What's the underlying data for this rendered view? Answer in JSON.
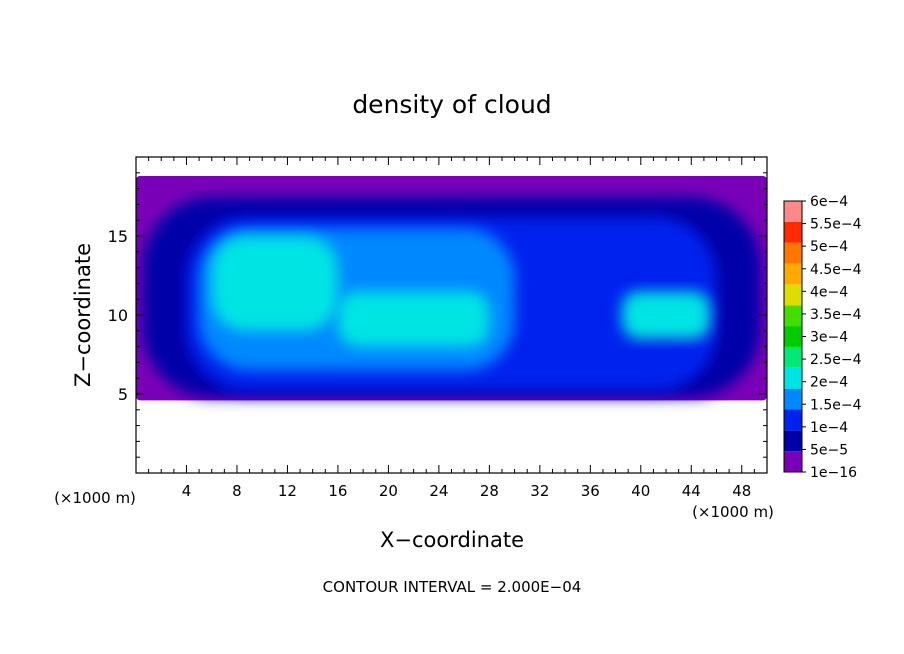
{
  "chart_data": {
    "type": "heatmap",
    "title": "density of cloud",
    "xlabel": "X−coordinate",
    "ylabel": "Z−coordinate",
    "x_unit_label": "(×1000 m)",
    "x_unit_label_right": "(×1000 m)",
    "xlim": [
      0,
      50
    ],
    "ylim": [
      0,
      20
    ],
    "x_ticks": [
      4,
      8,
      12,
      16,
      20,
      24,
      28,
      32,
      36,
      40,
      44,
      48
    ],
    "x_tick_labels": [
      "4",
      "8",
      "12",
      "16",
      "20",
      "24",
      "28",
      "32",
      "36",
      "40",
      "44",
      "48"
    ],
    "y_ticks": [
      5,
      10,
      15
    ],
    "y_tick_labels": [
      "5",
      "10",
      "15"
    ],
    "footer": "CONTOUR INTERVAL = 2.000E−04",
    "colorbar": {
      "levels": [
        "1e−16",
        "5e−5",
        "1e−4",
        "1.5e−4",
        "2e−4",
        "2.5e−4",
        "3e−4",
        "3.5e−4",
        "4e−4",
        "4.5e−4",
        "5e−4",
        "5.5e−4",
        "6e−4"
      ],
      "values": [
        1e-16,
        5e-05,
        0.0001,
        0.00015,
        0.0002,
        0.00025,
        0.0003,
        0.00035,
        0.0004,
        0.00045,
        0.0005,
        0.00055,
        0.0006
      ],
      "colors": [
        "#7a00b8",
        "#0000a8",
        "#0022ee",
        "#0088ff",
        "#00e4e4",
        "#00e878",
        "#00cc00",
        "#44dd00",
        "#dddd00",
        "#ffaa00",
        "#ff7700",
        "#ff2a00",
        "#ff8888"
      ]
    },
    "regions": [
      {
        "level": 0,
        "x": [
          0,
          50
        ],
        "z": [
          4.6,
          18.8
        ]
      },
      {
        "level": 1,
        "x": [
          0.5,
          49.5
        ],
        "z": [
          4.8,
          17.5
        ]
      },
      {
        "level": 2,
        "x": [
          4,
          46
        ],
        "z": [
          5.2,
          16.2
        ]
      },
      {
        "level": 3,
        "x": [
          5,
          30
        ],
        "z": [
          6.5,
          15.5
        ]
      },
      {
        "level": 4,
        "x": [
          6,
          16
        ],
        "z": [
          9,
          15
        ]
      },
      {
        "level": 4,
        "x": [
          16,
          28
        ],
        "z": [
          8,
          11.5
        ]
      },
      {
        "level": 4,
        "x": [
          38.5,
          45.5
        ],
        "z": [
          8.5,
          11.5
        ]
      }
    ]
  }
}
